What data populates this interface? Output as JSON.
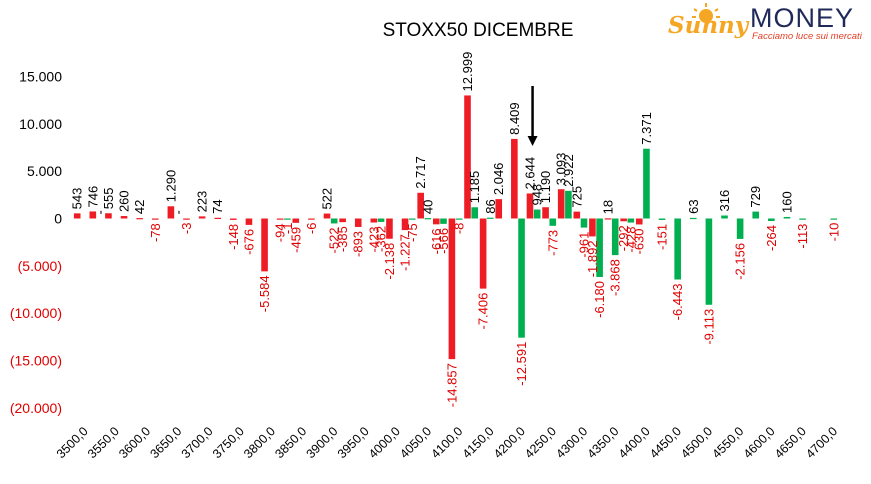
{
  "logo": {
    "brand_left": "Sunny",
    "brand_right": "MONEY",
    "tagline": "Facciamo luce sui mercati",
    "colors": {
      "sun": "#f5a623",
      "navy": "#1f2a5a",
      "accent": "#e33d26"
    }
  },
  "colors": {
    "call": "#ee1c25",
    "put": "#00b050",
    "negative_text": "#e00000",
    "positive_text": "#000000"
  },
  "chart_data": {
    "type": "bar",
    "title": "STOXX50 DICEMBRE",
    "xlabel": "",
    "ylabel": "",
    "ylim": [
      -20000,
      17000
    ],
    "y_ticks": [
      15000,
      10000,
      5000,
      0,
      -5000,
      -10000,
      -15000,
      -20000
    ],
    "y_tick_labels": [
      "15.000",
      "10.000",
      "5.000",
      "0",
      "(5.000)",
      "(10.000)",
      "(15.000)",
      "(20.000)"
    ],
    "x_tick_labels": [
      "3500,0",
      "3550,0",
      "3600,0",
      "3650,0",
      "3700,0",
      "3750,0",
      "3800,0",
      "3850,0",
      "3900,0",
      "3950,0",
      "4000,0",
      "4050,0",
      "4100,0",
      "4150,0",
      "4200,0",
      "4250,0",
      "4300,0",
      "4350,0",
      "4400,0",
      "4450,0",
      "4500,0",
      "4550,0",
      "4600,0",
      "4650,0",
      "4700,0"
    ],
    "legend": "none",
    "grid": false,
    "arrow_annotation_x": 4225,
    "series": [
      {
        "color": "#ee1c25",
        "points": [
          {
            "strike": 3500,
            "value": 543,
            "label": "543"
          },
          {
            "strike": 3525,
            "value": 746,
            "label": "746"
          },
          {
            "strike": 3550,
            "value": 555,
            "label": "555"
          },
          {
            "strike": 3575,
            "value": 260,
            "label": "260"
          },
          {
            "strike": 3600,
            "value": 42,
            "label": "42"
          },
          {
            "strike": 3625,
            "value": -78,
            "label": "-78"
          },
          {
            "strike": 3650,
            "value": 1290,
            "label": "1.290"
          },
          {
            "strike": 3675,
            "value": -3,
            "label": "-3"
          },
          {
            "strike": 3700,
            "value": 223,
            "label": "223"
          },
          {
            "strike": 3725,
            "value": 74,
            "label": "74"
          },
          {
            "strike": 3750,
            "value": -148,
            "label": "-148"
          },
          {
            "strike": 3775,
            "value": -676,
            "label": "-676"
          },
          {
            "strike": 3800,
            "value": -5584,
            "label": "-5.584"
          },
          {
            "strike": 3825,
            "value": -94,
            "label": "-94"
          },
          {
            "strike": 3850,
            "value": -459,
            "label": "-459"
          },
          {
            "strike": 3875,
            "value": -6,
            "label": "-6"
          },
          {
            "strike": 3900,
            "value": 522,
            "label": "522"
          },
          {
            "strike": 3925,
            "value": -385,
            "label": "-385"
          },
          {
            "strike": 3950,
            "value": -893,
            "label": "-893"
          },
          {
            "strike": 3975,
            "value": -423,
            "label": "-423"
          },
          {
            "strike": 4000,
            "value": -2138,
            "label": "-2.138"
          },
          {
            "strike": 4025,
            "value": -1227,
            "label": "-1.227"
          },
          {
            "strike": 4050,
            "value": 2717,
            "label": "2.717"
          },
          {
            "strike": 4075,
            "value": -616,
            "label": "-616"
          },
          {
            "strike": 4100,
            "value": -14857,
            "label": "-14.857"
          },
          {
            "strike": 4125,
            "value": 12999,
            "label": "12.999"
          },
          {
            "strike": 4150,
            "value": -7406,
            "label": "-7.406"
          },
          {
            "strike": 4175,
            "value": 2046,
            "label": "2.046"
          },
          {
            "strike": 4200,
            "value": 8409,
            "label": "8.409"
          },
          {
            "strike": 4225,
            "value": 2644,
            "label": "2.644"
          },
          {
            "strike": 4250,
            "value": 1190,
            "label": "1.190"
          },
          {
            "strike": 4275,
            "value": 3093,
            "label": "3.093"
          },
          {
            "strike": 4300,
            "value": 725,
            "label": "725"
          },
          {
            "strike": 4325,
            "value": -1892,
            "label": "-1.892"
          },
          {
            "strike": 4350,
            "value": 18,
            "label": "18"
          },
          {
            "strike": 4375,
            "value": -292,
            "label": "-292"
          },
          {
            "strike": 4400,
            "value": -630,
            "label": "-630"
          }
        ]
      },
      {
        "color": "#00b050",
        "points": [
          {
            "strike": 3525,
            "value": 0,
            "label": "-"
          },
          {
            "strike": 3650,
            "value": 0,
            "label": "-"
          },
          {
            "strike": 3825,
            "value": -1,
            "label": "-1"
          },
          {
            "strike": 3900,
            "value": -522,
            "label": "-522"
          },
          {
            "strike": 3975,
            "value": -362,
            "label": "-362"
          },
          {
            "strike": 4025,
            "value": -75,
            "label": "-75"
          },
          {
            "strike": 4050,
            "value": 40,
            "label": "40"
          },
          {
            "strike": 4075,
            "value": -566,
            "label": "-566"
          },
          {
            "strike": 4100,
            "value": -8,
            "label": "-8"
          },
          {
            "strike": 4125,
            "value": 1185,
            "label": "1.185"
          },
          {
            "strike": 4150,
            "value": 86,
            "label": "86"
          },
          {
            "strike": 4200,
            "value": -12591,
            "label": "-12.591"
          },
          {
            "strike": 4225,
            "value": 948,
            "label": "948"
          },
          {
            "strike": 4250,
            "value": -773,
            "label": "-773"
          },
          {
            "strike": 4275,
            "value": 2922,
            "label": "2.922"
          },
          {
            "strike": 4300,
            "value": -961,
            "label": "-961"
          },
          {
            "strike": 4325,
            "value": -6180,
            "label": "-6.180"
          },
          {
            "strike": 4350,
            "value": -3868,
            "label": "-3.868"
          },
          {
            "strike": 4375,
            "value": -428,
            "label": "-428"
          },
          {
            "strike": 4400,
            "value": 7371,
            "label": "7.371"
          },
          {
            "strike": 4425,
            "value": -151,
            "label": "-151"
          },
          {
            "strike": 4450,
            "value": -6443,
            "label": "-6.443"
          },
          {
            "strike": 4475,
            "value": 63,
            "label": "63"
          },
          {
            "strike": 4500,
            "value": -9113,
            "label": "-9.113"
          },
          {
            "strike": 4525,
            "value": 316,
            "label": "316"
          },
          {
            "strike": 4550,
            "value": -2156,
            "label": "-2.156"
          },
          {
            "strike": 4575,
            "value": 729,
            "label": "729"
          },
          {
            "strike": 4600,
            "value": -264,
            "label": "-264"
          },
          {
            "strike": 4625,
            "value": 160,
            "label": "160"
          },
          {
            "strike": 4650,
            "value": -113,
            "label": "-113"
          },
          {
            "strike": 4700,
            "value": -10,
            "label": "-10"
          }
        ]
      }
    ]
  }
}
